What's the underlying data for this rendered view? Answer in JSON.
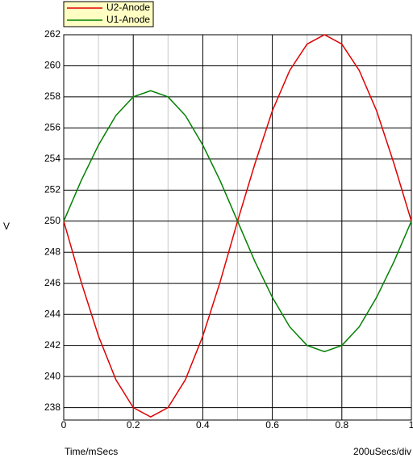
{
  "chart_data": {
    "type": "line",
    "x": [
      0,
      0.05,
      0.1,
      0.15,
      0.2,
      0.25,
      0.3,
      0.35,
      0.4,
      0.45,
      0.5,
      0.55,
      0.6,
      0.65,
      0.7,
      0.75,
      0.8,
      0.85,
      0.9,
      0.95,
      1
    ],
    "series": [
      {
        "name": "U2-Anode",
        "color": "#e00000",
        "values": [
          250,
          246.1,
          242.6,
          239.8,
          238.0,
          237.4,
          238.0,
          239.8,
          242.6,
          246.1,
          250,
          253.7,
          257.1,
          259.7,
          261.4,
          262,
          261.4,
          259.7,
          257.1,
          253.7,
          250
        ]
      },
      {
        "name": "U1-Anode",
        "color": "#008000",
        "values": [
          250,
          252.6,
          254.9,
          256.8,
          258.0,
          258.4,
          258.0,
          256.8,
          254.9,
          252.6,
          250,
          247.4,
          245.1,
          243.2,
          242.0,
          241.6,
          242.0,
          243.2,
          245.1,
          247.4,
          250
        ]
      }
    ],
    "xlim": [
      0,
      1
    ],
    "xticks": [
      0,
      0.2,
      0.4,
      0.6,
      0.8,
      1
    ],
    "x_minor_ticks": [
      0.1,
      0.3,
      0.5,
      0.7,
      0.9
    ],
    "ylim": [
      237.2,
      262
    ],
    "yticks": [
      238,
      240,
      242,
      244,
      246,
      248,
      250,
      252,
      254,
      256,
      258,
      260,
      262
    ],
    "grid": true,
    "legend": "top-left",
    "ylabel": "V",
    "xlabel": "Time/mSecs",
    "annotation": "200uSecs/div"
  }
}
